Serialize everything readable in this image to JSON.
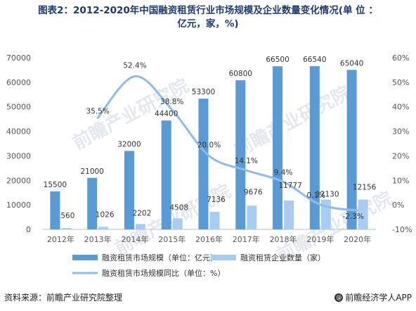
{
  "header": {
    "title_line1": "图表2：2012-2020年中国融资租赁行业市场规模及企业数量变化情况(单 位 ：",
    "title_line2": "亿元，家，%)"
  },
  "footer": {
    "source": "资料来源：前瞻产业研究院整理",
    "brand": "@前瞻经济学人APP",
    "brand_icon": "at-icon"
  },
  "watermark": "前瞻产业研究院",
  "colors": {
    "market_scale": "#5b9bd5",
    "company_count": "#a9cdf2",
    "yoy_line": "#8fbcea",
    "axis_text": "#555555",
    "title": "#1f3a6e"
  },
  "chart_data": {
    "type": "bar",
    "categories": [
      "2012年",
      "2013年",
      "2014年",
      "2015年",
      "2016年",
      "2017年",
      "2018年",
      "2019年",
      "2020年"
    ],
    "series": [
      {
        "name": "融资租赁市场规模（单位：亿元）",
        "type": "bar",
        "axis": "left",
        "values": [
          15500,
          21000,
          32000,
          44400,
          53300,
          60800,
          66500,
          66540,
          65040
        ],
        "labels": [
          "15500",
          "21000",
          "32000",
          "44400",
          "53300",
          "60800",
          "66500",
          "66540",
          "65040"
        ]
      },
      {
        "name": "融资租赁企业数量（家）",
        "type": "bar",
        "axis": "left",
        "values": [
          560,
          1026,
          2202,
          4508,
          7136,
          9676,
          11777,
          12130,
          12156
        ],
        "labels": [
          "560",
          "1026",
          "2202",
          "4508",
          "7136",
          "9676",
          "11777",
          "12130",
          "12156"
        ]
      },
      {
        "name": "融资租赁市场规模同比（单位：%）",
        "type": "line",
        "axis": "right",
        "values": [
          null,
          35.5,
          52.4,
          38.8,
          20.0,
          14.1,
          9.4,
          0.1,
          -2.3
        ],
        "labels": [
          null,
          "35.5%",
          "52.4%",
          "38.8%",
          "20.0%",
          "14.1%",
          "9.4%",
          "0.1%",
          "-2.3%"
        ]
      }
    ],
    "y_left": {
      "lim": [
        0,
        70000
      ],
      "ticks": [
        "0",
        "10000",
        "20000",
        "30000",
        "40000",
        "50000",
        "60000",
        "70000"
      ]
    },
    "y_right": {
      "lim": [
        -10,
        60
      ],
      "ticks": [
        "-10%",
        "0%",
        "10%",
        "20%",
        "30%",
        "40%",
        "50%",
        "60%"
      ]
    },
    "legend_position": "bottom",
    "grid": false
  }
}
